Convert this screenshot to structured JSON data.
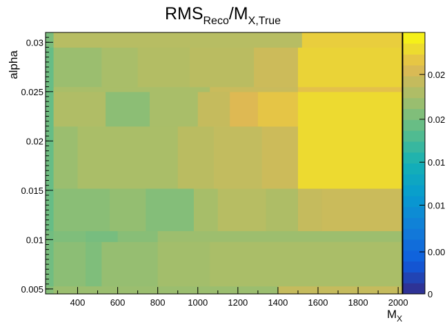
{
  "chart_data": {
    "type": "heatmap",
    "title": {
      "base": "RMS",
      "sub1": "Reco",
      "mid": "/M",
      "sub2": "X,True"
    },
    "xlabel": {
      "base": "M",
      "sub": "X"
    },
    "ylabel": "alpha",
    "xlim": [
      240,
      2020
    ],
    "ylim": [
      0.0045,
      0.031
    ],
    "x_ticks": [
      400,
      600,
      800,
      1000,
      1200,
      1400,
      1600,
      1800,
      2000
    ],
    "x_tick_labels": [
      "400",
      "600",
      "800",
      "1000",
      "1200",
      "1400",
      "1600",
      "1800",
      "2000"
    ],
    "y_ticks": [
      0.005,
      0.01,
      0.015,
      0.02,
      0.025,
      0.03
    ],
    "y_tick_labels": [
      "0.005",
      "0.01",
      "0.015",
      "0.02",
      "0.025",
      "0.03"
    ],
    "zlim": [
      0,
      0.028
    ],
    "z_tick_labels": [
      {
        "value": 0,
        "label": "0"
      },
      {
        "value": 0.0045,
        "label": "0.00"
      },
      {
        "value": 0.0095,
        "label": "0.01"
      },
      {
        "value": 0.0141,
        "label": "0.01"
      },
      {
        "value": 0.0187,
        "label": "0.02"
      },
      {
        "value": 0.0235,
        "label": "0.02"
      }
    ],
    "grid": false,
    "colormap": "kBird",
    "bands": [
      {
        "y_range": [
          0.0045,
          0.0053
        ],
        "segments": [
          [
            240,
            280,
            0.0195
          ],
          [
            280,
            1400,
            0.0205
          ],
          [
            1400,
            2020,
            0.0228
          ]
        ]
      },
      {
        "y_range": [
          0.0053,
          0.0098
        ],
        "segments": [
          [
            240,
            260,
            0.019
          ],
          [
            260,
            280,
            0.0185
          ],
          [
            280,
            440,
            0.0198
          ],
          [
            440,
            520,
            0.0192
          ],
          [
            520,
            800,
            0.0203
          ],
          [
            800,
            1060,
            0.0209
          ],
          [
            1060,
            2020,
            0.0213
          ]
        ]
      },
      {
        "y_range": [
          0.0098,
          0.0109
        ],
        "segments": [
          [
            240,
            260,
            0.019
          ],
          [
            260,
            280,
            0.0185
          ],
          [
            280,
            440,
            0.0192
          ],
          [
            440,
            600,
            0.0188
          ],
          [
            600,
            800,
            0.0196
          ],
          [
            800,
            2020,
            0.0206
          ]
        ]
      },
      {
        "y_range": [
          0.0109,
          0.0152
        ],
        "segments": [
          [
            240,
            260,
            0.0185
          ],
          [
            260,
            280,
            0.018
          ],
          [
            280,
            560,
            0.0197
          ],
          [
            560,
            740,
            0.0202
          ],
          [
            740,
            980,
            0.0194
          ],
          [
            980,
            1100,
            0.0211
          ],
          [
            1100,
            1340,
            0.022
          ],
          [
            1340,
            1500,
            0.0215
          ],
          [
            1500,
            1620,
            0.0228
          ],
          [
            1620,
            2020,
            0.0231
          ]
        ]
      },
      {
        "y_range": [
          0.0152,
          0.0215
        ],
        "segments": [
          [
            240,
            260,
            0.0185
          ],
          [
            260,
            280,
            0.018
          ],
          [
            280,
            400,
            0.0205
          ],
          [
            400,
            900,
            0.0213
          ],
          [
            900,
            1080,
            0.0222
          ],
          [
            1080,
            1320,
            0.0226
          ],
          [
            1320,
            1500,
            0.0232
          ],
          [
            1500,
            2020,
            0.0262
          ]
        ]
      },
      {
        "y_range": [
          0.0215,
          0.025
        ],
        "segments": [
          [
            240,
            260,
            0.0185
          ],
          [
            260,
            280,
            0.018
          ],
          [
            280,
            540,
            0.0216
          ],
          [
            540,
            760,
            0.0198
          ],
          [
            760,
            1000,
            0.0212
          ],
          [
            1000,
            1160,
            0.0228
          ],
          [
            1160,
            1300,
            0.0242
          ],
          [
            1300,
            1500,
            0.025
          ],
          [
            1500,
            2020,
            0.0262
          ]
        ]
      },
      {
        "y_range": [
          0.025,
          0.0255
        ],
        "segments": [
          [
            240,
            260,
            0.0185
          ],
          [
            260,
            280,
            0.018
          ],
          [
            280,
            1060,
            0.0212
          ],
          [
            1060,
            1500,
            0.023
          ],
          [
            1500,
            2020,
            0.0248
          ]
        ]
      },
      {
        "y_range": [
          0.0255,
          0.0295
        ],
        "segments": [
          [
            240,
            260,
            0.0185
          ],
          [
            260,
            280,
            0.018
          ],
          [
            280,
            520,
            0.0205
          ],
          [
            520,
            700,
            0.0212
          ],
          [
            700,
            960,
            0.0218
          ],
          [
            960,
            1280,
            0.0222
          ],
          [
            1280,
            1500,
            0.0232
          ],
          [
            1500,
            2020,
            0.0258
          ]
        ]
      },
      {
        "y_range": [
          0.0295,
          0.031
        ],
        "segments": [
          [
            240,
            280,
            0.019
          ],
          [
            280,
            1520,
            0.022
          ],
          [
            1520,
            2020,
            0.0255
          ]
        ]
      }
    ]
  }
}
